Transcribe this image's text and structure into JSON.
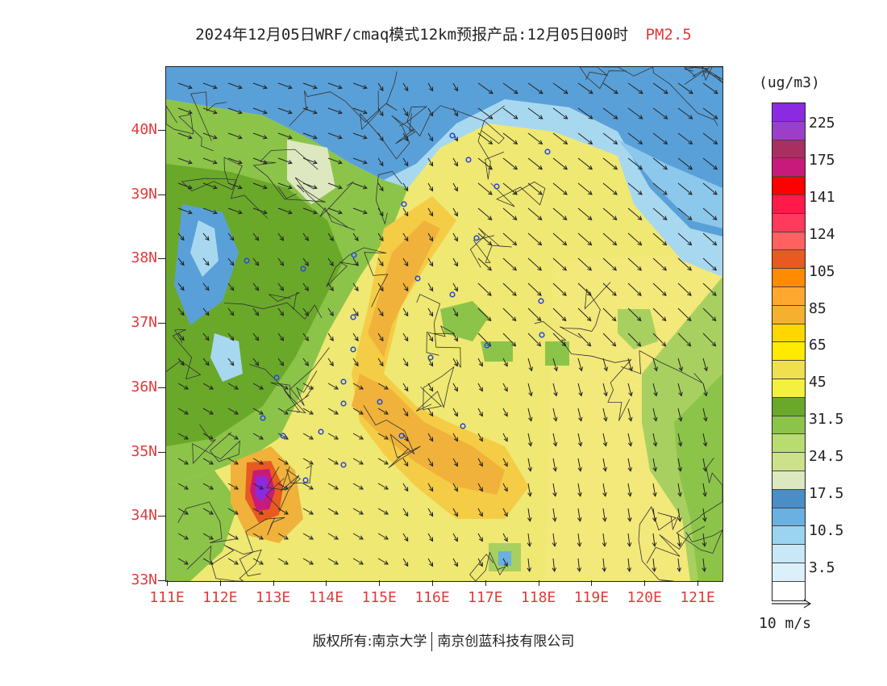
{
  "title": {
    "main": "2024年12月05日WRF/cmaq模式12km预报产品:12月05日00时",
    "pollutant": "PM2.5"
  },
  "axes": {
    "lat_labels": [
      "40N",
      "39N",
      "38N",
      "37N",
      "36N",
      "35N",
      "34N",
      "33N"
    ],
    "lon_labels": [
      "111E",
      "112E",
      "113E",
      "114E",
      "115E",
      "116E",
      "117E",
      "118E",
      "119E",
      "120E",
      "121E"
    ]
  },
  "legend": {
    "unit": "(ug/m3)",
    "labels": [
      "225",
      "175",
      "141",
      "124",
      "105",
      "85",
      "65",
      "45",
      "31.5",
      "24.5",
      "17.5",
      "10.5",
      "3.5"
    ],
    "colors": [
      "#8a2be2",
      "#9c3fc8",
      "#a83060",
      "#c81a7a",
      "#ff0000",
      "#ff1a4a",
      "#ff3a5a",
      "#ff6060",
      "#e85a20",
      "#ff8c00",
      "#ffa830",
      "#f5b030",
      "#ffd700",
      "#ffea00",
      "#f0e050",
      "#f4f040",
      "#6aa82a",
      "#8cc44a",
      "#b8dc70",
      "#cde08a",
      "#dde8c0",
      "#4a8ec8",
      "#6ab0e0",
      "#9ad4f0",
      "#c8e8f8",
      "#dcf0fc",
      "#ffffff"
    ]
  },
  "wind_reference": {
    "label": "10 m/s"
  },
  "copyright": {
    "owner": "版权所有:南京大学",
    "company": "南京创蓝科技有限公司"
  },
  "map_colors": {
    "base_yellow": "#efe872",
    "orange": "#f0b23a",
    "light_orange": "#f5cc45",
    "green": "#6aa82a",
    "light_green": "#a8d060",
    "blue": "#5aa0d8",
    "light_blue": "#a8d8f0",
    "hotspot": "#8a2be2"
  }
}
